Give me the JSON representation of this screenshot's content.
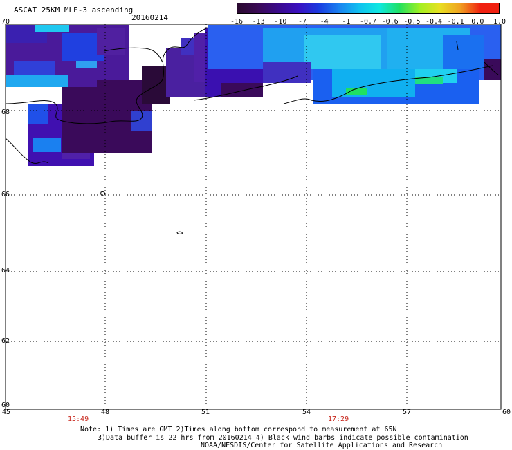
{
  "title": "ASCAT 25KM MLE-3 ascending",
  "date": "20160214",
  "colorbar": {
    "labels": [
      "-16",
      "-13",
      "-10",
      "-7",
      "-4",
      "-1",
      "-0.7",
      "-0.6",
      "-0.5",
      "-0.4",
      "-0.1",
      "0.0",
      "1.0"
    ],
    "colors": [
      "#2a0a30",
      "#3a0a55",
      "#3a0a8a",
      "#3a10c0",
      "#1a3ae0",
      "#1a80f0",
      "#10c0f0",
      "#10e8e0",
      "#20e060",
      "#a0f020",
      "#e8e020",
      "#f0a020",
      "#f02010"
    ]
  },
  "axes": {
    "y_ticks": [
      "70",
      "68",
      "66",
      "64",
      "62",
      "60"
    ],
    "x_ticks": [
      "45",
      "48",
      "51",
      "54",
      "57",
      "60"
    ]
  },
  "times": [
    "15:49",
    "17:29"
  ],
  "notes": [
    "Note: 1) Times are GMT 2)Times along bottom correspond to measurement at 65N",
    "3)Data buffer is 22 hrs from 20160214 4) Black wind barbs indicate possible contamination",
    "NOAA/NESDIS/Center for Satellite Applications and Research"
  ]
}
